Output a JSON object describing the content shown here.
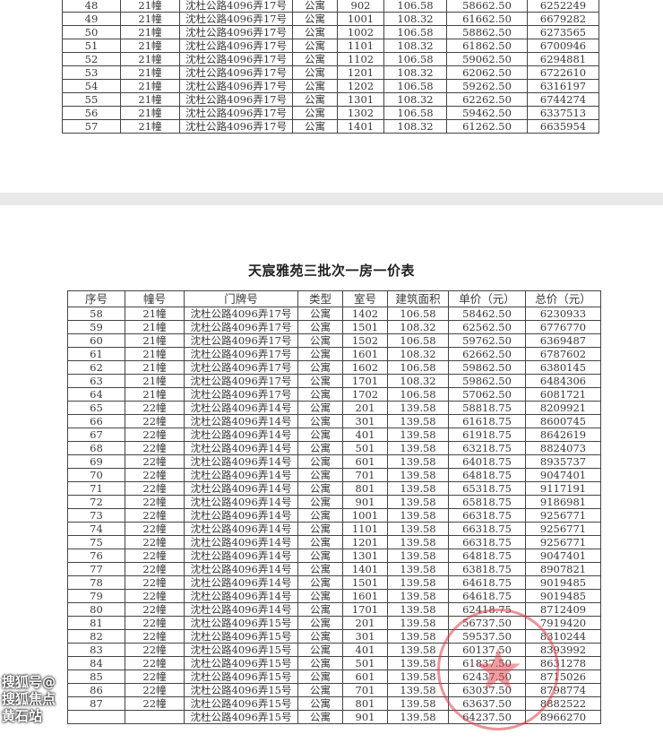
{
  "page1": {
    "rows": [
      [
        "48",
        "21幢",
        "沈杜公路4096弄17号",
        "公寓",
        "902",
        "106.58",
        "58662.50",
        "6252249"
      ],
      [
        "49",
        "21幢",
        "沈杜公路4096弄17号",
        "公寓",
        "1001",
        "108.32",
        "61662.50",
        "6679282"
      ],
      [
        "50",
        "21幢",
        "沈杜公路4096弄17号",
        "公寓",
        "1002",
        "106.58",
        "58862.50",
        "6273565"
      ],
      [
        "51",
        "21幢",
        "沈杜公路4096弄17号",
        "公寓",
        "1101",
        "108.32",
        "61862.50",
        "6700946"
      ],
      [
        "52",
        "21幢",
        "沈杜公路4096弄17号",
        "公寓",
        "1102",
        "106.58",
        "59062.50",
        "6294881"
      ],
      [
        "53",
        "21幢",
        "沈杜公路4096弄17号",
        "公寓",
        "1201",
        "108.32",
        "62062.50",
        "6722610"
      ],
      [
        "54",
        "21幢",
        "沈杜公路4096弄17号",
        "公寓",
        "1202",
        "106.58",
        "59262.50",
        "6316197"
      ],
      [
        "55",
        "21幢",
        "沈杜公路4096弄17号",
        "公寓",
        "1301",
        "108.32",
        "62262.50",
        "6744274"
      ],
      [
        "56",
        "21幢",
        "沈杜公路4096弄17号",
        "公寓",
        "1302",
        "106.58",
        "59462.50",
        "6337513"
      ],
      [
        "57",
        "21幢",
        "沈杜公路4096弄17号",
        "公寓",
        "1401",
        "108.32",
        "61262.50",
        "6635954"
      ]
    ]
  },
  "page2": {
    "title": "天宸雅苑三批次一房一价表",
    "headers": [
      "序号",
      "幢号",
      "门牌号",
      "类型",
      "室号",
      "建筑面积",
      "单价（元）",
      "总价（元）"
    ],
    "rows": [
      [
        "58",
        "21幢",
        "沈杜公路4096弄17号",
        "公寓",
        "1402",
        "106.58",
        "58462.50",
        "6230933"
      ],
      [
        "59",
        "21幢",
        "沈杜公路4096弄17号",
        "公寓",
        "1501",
        "108.32",
        "62562.50",
        "6776770"
      ],
      [
        "60",
        "21幢",
        "沈杜公路4096弄17号",
        "公寓",
        "1502",
        "106.58",
        "59762.50",
        "6369487"
      ],
      [
        "61",
        "21幢",
        "沈杜公路4096弄17号",
        "公寓",
        "1601",
        "108.32",
        "62662.50",
        "6787602"
      ],
      [
        "62",
        "21幢",
        "沈杜公路4096弄17号",
        "公寓",
        "1602",
        "106.58",
        "59862.50",
        "6380145"
      ],
      [
        "63",
        "21幢",
        "沈杜公路4096弄17号",
        "公寓",
        "1701",
        "108.32",
        "59862.50",
        "6484306"
      ],
      [
        "64",
        "21幢",
        "沈杜公路4096弄17号",
        "公寓",
        "1702",
        "106.58",
        "57062.50",
        "6081721"
      ],
      [
        "65",
        "22幢",
        "沈杜公路4096弄14号",
        "公寓",
        "201",
        "139.58",
        "58818.75",
        "8209921"
      ],
      [
        "66",
        "22幢",
        "沈杜公路4096弄14号",
        "公寓",
        "301",
        "139.58",
        "61618.75",
        "8600745"
      ],
      [
        "67",
        "22幢",
        "沈杜公路4096弄14号",
        "公寓",
        "401",
        "139.58",
        "61918.75",
        "8642619"
      ],
      [
        "68",
        "22幢",
        "沈杜公路4096弄14号",
        "公寓",
        "501",
        "139.58",
        "63218.75",
        "8824073"
      ],
      [
        "69",
        "22幢",
        "沈杜公路4096弄14号",
        "公寓",
        "601",
        "139.58",
        "64018.75",
        "8935737"
      ],
      [
        "70",
        "22幢",
        "沈杜公路4096弄14号",
        "公寓",
        "701",
        "139.58",
        "64818.75",
        "9047401"
      ],
      [
        "71",
        "22幢",
        "沈杜公路4096弄14号",
        "公寓",
        "801",
        "139.58",
        "65318.75",
        "9117191"
      ],
      [
        "72",
        "22幢",
        "沈杜公路4096弄14号",
        "公寓",
        "901",
        "139.58",
        "65818.75",
        "9186981"
      ],
      [
        "73",
        "22幢",
        "沈杜公路4096弄14号",
        "公寓",
        "1001",
        "139.58",
        "66318.75",
        "9256771"
      ],
      [
        "74",
        "22幢",
        "沈杜公路4096弄14号",
        "公寓",
        "1101",
        "139.58",
        "66318.75",
        "9256771"
      ],
      [
        "75",
        "22幢",
        "沈杜公路4096弄14号",
        "公寓",
        "1201",
        "139.58",
        "66318.75",
        "9256771"
      ],
      [
        "76",
        "22幢",
        "沈杜公路4096弄14号",
        "公寓",
        "1301",
        "139.58",
        "64818.75",
        "9047401"
      ],
      [
        "77",
        "22幢",
        "沈杜公路4096弄14号",
        "公寓",
        "1401",
        "139.58",
        "63818.75",
        "8907821"
      ],
      [
        "78",
        "22幢",
        "沈杜公路4096弄14号",
        "公寓",
        "1501",
        "139.58",
        "64618.75",
        "9019485"
      ],
      [
        "79",
        "22幢",
        "沈杜公路4096弄14号",
        "公寓",
        "1601",
        "139.58",
        "64618.75",
        "9019485"
      ],
      [
        "80",
        "22幢",
        "沈杜公路4096弄14号",
        "公寓",
        "1701",
        "139.58",
        "62418.75",
        "8712409"
      ],
      [
        "81",
        "22幢",
        "沈杜公路4096弄15号",
        "公寓",
        "201",
        "139.58",
        "56737.50",
        "7919420"
      ],
      [
        "82",
        "22幢",
        "沈杜公路4096弄15号",
        "公寓",
        "301",
        "139.58",
        "59537.50",
        "8310244"
      ],
      [
        "83",
        "22幢",
        "沈杜公路4096弄15号",
        "公寓",
        "401",
        "139.58",
        "60137.50",
        "8393992"
      ],
      [
        "84",
        "22幢",
        "沈杜公路4096弄15号",
        "公寓",
        "501",
        "139.58",
        "61837.50",
        "8631278"
      ],
      [
        "85",
        "22幢",
        "沈杜公路4096弄15号",
        "公寓",
        "601",
        "139.58",
        "62437.50",
        "8715026"
      ],
      [
        "86",
        "22幢",
        "沈杜公路4096弄15号",
        "公寓",
        "701",
        "139.58",
        "63037.50",
        "8798774"
      ],
      [
        "87",
        "22幢",
        "沈杜公路4096弄15号",
        "公寓",
        "801",
        "139.58",
        "63637.50",
        "8882522"
      ],
      [
        "",
        "",
        "沈杜公路4096弄15号",
        "公寓",
        "901",
        "139.58",
        "64237.50",
        "8966270"
      ]
    ]
  },
  "watermark": "搜狐号@搜狐焦点黄石站",
  "colors": {
    "stamp": "#dc3c46",
    "gap": "#e9e9e9"
  }
}
